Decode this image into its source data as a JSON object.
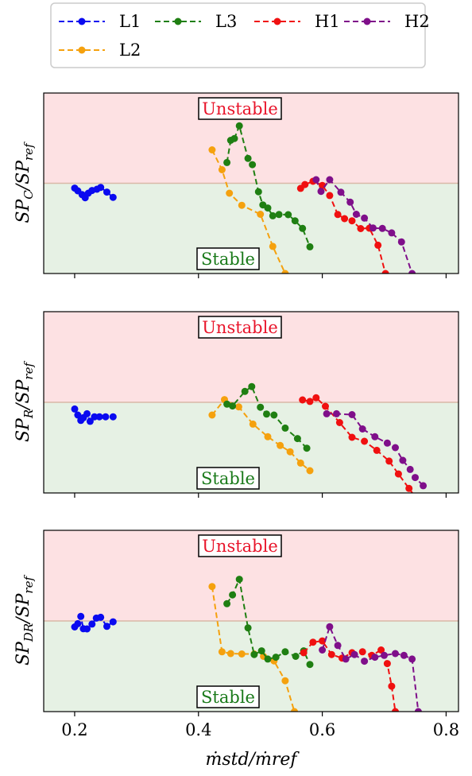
{
  "colors": {
    "L1": "#0a0af0",
    "L2": "#f5a10e",
    "L3": "#1f7f12",
    "H1": "#f01010",
    "H2": "#7f0f8a",
    "unstable_fill": "#fde1e3",
    "stable_fill": "#e6f1e4",
    "threshold_line": "#d9b9a8",
    "unstable_text": "#e8142a",
    "stable_text": "#1a7a1a"
  },
  "legend": {
    "entries": [
      "L1",
      "L3",
      "H1",
      "H2",
      "L2"
    ]
  },
  "chart_data": {
    "type": "line",
    "line_style": "dashed-with-markers",
    "x_label": "ṁstd/ṁref",
    "x_ticks": [
      "0.2",
      "0.4",
      "0.6",
      "0.8"
    ],
    "xlim": [
      0.15,
      0.82
    ],
    "ylim": [
      0,
      1
    ],
    "threshold": 0.5,
    "region_labels": {
      "above": "Unstable",
      "below": "Stable"
    },
    "panels": [
      {
        "ylabel_main": "SP",
        "ylabel_sub": "C",
        "ylabel_den": "SP",
        "ylabel_den_sub": "ref",
        "series": [
          {
            "name": "L1",
            "x": [
              0.2,
              0.205,
              0.212,
              0.217,
              0.222,
              0.228,
              0.236,
              0.242,
              0.252,
              0.262
            ],
            "y": [
              0.473,
              0.458,
              0.437,
              0.42,
              0.445,
              0.46,
              0.467,
              0.477,
              0.451,
              0.422
            ]
          },
          {
            "name": "L2",
            "x": [
              0.422,
              0.438,
              0.45,
              0.47,
              0.5,
              0.52,
              0.54
            ],
            "y": [
              0.685,
              0.575,
              0.445,
              0.378,
              0.328,
              0.15,
              0.0
            ]
          },
          {
            "name": "L3",
            "x": [
              0.446,
              0.452,
              0.458,
              0.466,
              0.48,
              0.487,
              0.497,
              0.504,
              0.512,
              0.52,
              0.53,
              0.545,
              0.556,
              0.568,
              0.58
            ],
            "y": [
              0.615,
              0.738,
              0.748,
              0.818,
              0.638,
              0.603,
              0.453,
              0.38,
              0.363,
              0.32,
              0.327,
              0.326,
              0.292,
              0.25,
              0.148
            ]
          },
          {
            "name": "H1",
            "x": [
              0.565,
              0.572,
              0.585,
              0.6,
              0.612,
              0.625,
              0.636,
              0.648,
              0.662,
              0.676,
              0.69,
              0.702
            ],
            "y": [
              0.472,
              0.493,
              0.511,
              0.488,
              0.432,
              0.327,
              0.304,
              0.292,
              0.249,
              0.251,
              0.157,
              0.0
            ]
          },
          {
            "name": "H2",
            "x": [
              0.59,
              0.598,
              0.612,
              0.63,
              0.645,
              0.655,
              0.668,
              0.682,
              0.697,
              0.712,
              0.728,
              0.745
            ],
            "y": [
              0.52,
              0.455,
              0.52,
              0.45,
              0.395,
              0.328,
              0.307,
              0.252,
              0.25,
              0.225,
              0.175,
              0.0
            ]
          }
        ]
      },
      {
        "ylabel_main": "SP",
        "ylabel_sub": "R",
        "ylabel_den": "SP",
        "ylabel_den_sub": "ref",
        "series": [
          {
            "name": "L1",
            "x": [
              0.2,
              0.205,
              0.21,
              0.214,
              0.22,
              0.225,
              0.232,
              0.24,
              0.25,
              0.262
            ],
            "y": [
              0.463,
              0.43,
              0.4,
              0.415,
              0.437,
              0.395,
              0.42,
              0.42,
              0.42,
              0.42
            ]
          },
          {
            "name": "L2",
            "x": [
              0.422,
              0.442,
              0.465,
              0.488,
              0.512,
              0.532,
              0.548,
              0.565,
              0.58
            ],
            "y": [
              0.43,
              0.515,
              0.475,
              0.38,
              0.31,
              0.262,
              0.227,
              0.165,
              0.123
            ]
          },
          {
            "name": "L3",
            "x": [
              0.446,
              0.455,
              0.475,
              0.486,
              0.5,
              0.51,
              0.522,
              0.54,
              0.56,
              0.575
            ],
            "y": [
              0.49,
              0.48,
              0.56,
              0.587,
              0.473,
              0.435,
              0.43,
              0.358,
              0.3,
              0.247
            ]
          },
          {
            "name": "H1",
            "x": [
              0.568,
              0.58,
              0.59,
              0.605,
              0.628,
              0.648,
              0.668,
              0.688,
              0.708,
              0.723,
              0.74,
              0.752
            ],
            "y": [
              0.513,
              0.505,
              0.525,
              0.478,
              0.388,
              0.307,
              0.285,
              0.235,
              0.176,
              0.105,
              0.025,
              -0.03
            ]
          },
          {
            "name": "H2",
            "x": [
              0.607,
              0.623,
              0.648,
              0.665,
              0.685,
              0.705,
              0.718,
              0.73,
              0.742,
              0.75,
              0.763
            ],
            "y": [
              0.437,
              0.437,
              0.432,
              0.353,
              0.31,
              0.275,
              0.25,
              0.18,
              0.13,
              0.085,
              0.04
            ]
          }
        ]
      },
      {
        "ylabel_main": "SP",
        "ylabel_sub": "DR",
        "ylabel_den": "SP",
        "ylabel_den_sub": "ref",
        "series": [
          {
            "name": "L1",
            "x": [
              0.2,
              0.205,
              0.21,
              0.214,
              0.22,
              0.228,
              0.235,
              0.242,
              0.252,
              0.262
            ],
            "y": [
              0.467,
              0.485,
              0.525,
              0.457,
              0.456,
              0.483,
              0.516,
              0.52,
              0.47,
              0.495
            ]
          },
          {
            "name": "L2",
            "x": [
              0.422,
              0.438,
              0.452,
              0.47,
              0.49,
              0.505,
              0.522,
              0.54,
              0.555
            ],
            "y": [
              0.69,
              0.33,
              0.32,
              0.318,
              0.318,
              0.305,
              0.28,
              0.17,
              0.0
            ]
          },
          {
            "name": "L3",
            "x": [
              0.446,
              0.455,
              0.466,
              0.48,
              0.49,
              0.502,
              0.512,
              0.525,
              0.54,
              0.557,
              0.57,
              0.58
            ],
            "y": [
              0.595,
              0.644,
              0.73,
              0.462,
              0.315,
              0.335,
              0.29,
              0.3,
              0.33,
              0.305,
              0.335,
              0.26
            ]
          },
          {
            "name": "H1",
            "x": [
              0.57,
              0.585,
              0.6,
              0.615,
              0.632,
              0.648,
              0.665,
              0.68,
              0.695,
              0.705,
              0.712,
              0.718
            ],
            "y": [
              0.325,
              0.383,
              0.39,
              0.315,
              0.295,
              0.325,
              0.33,
              0.31,
              0.34,
              0.265,
              0.14,
              0.0
            ]
          },
          {
            "name": "H2",
            "x": [
              0.6,
              0.612,
              0.625,
              0.638,
              0.652,
              0.668,
              0.685,
              0.7,
              0.718,
              0.732,
              0.745,
              0.755
            ],
            "y": [
              0.34,
              0.468,
              0.365,
              0.29,
              0.315,
              0.278,
              0.3,
              0.31,
              0.32,
              0.31,
              0.29,
              0.0
            ]
          }
        ]
      }
    ]
  }
}
